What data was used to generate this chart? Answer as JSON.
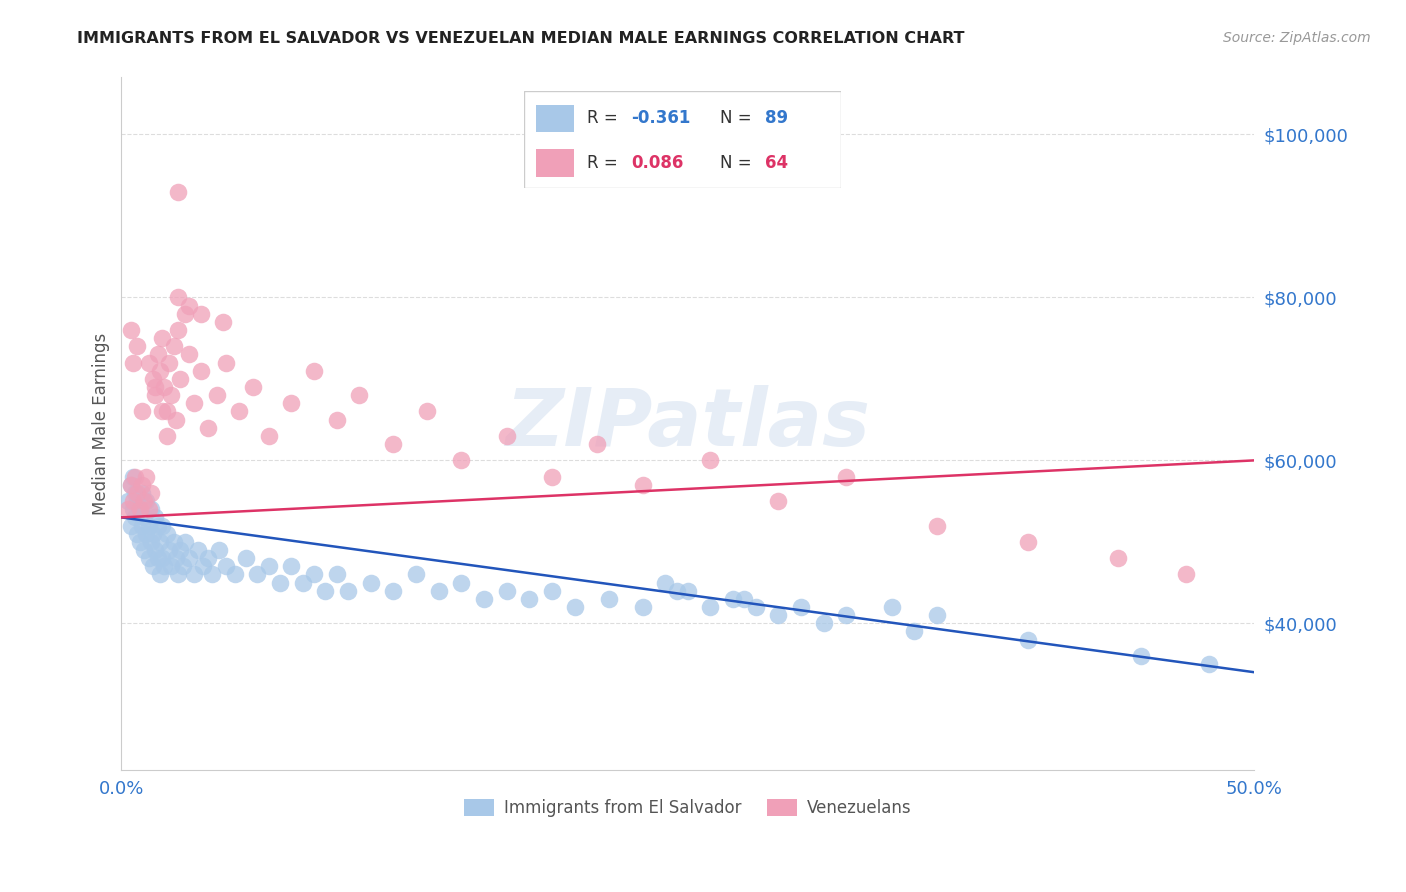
{
  "title": "IMMIGRANTS FROM EL SALVADOR VS VENEZUELAN MEDIAN MALE EARNINGS CORRELATION CHART",
  "source": "Source: ZipAtlas.com",
  "ylabel": "Median Male Earnings",
  "watermark": "ZIPatlas",
  "legend_blue_r": "R = -0.361",
  "legend_blue_n": "N = 89",
  "legend_pink_r": "R = 0.086",
  "legend_pink_n": "N = 64",
  "legend_blue_label": "Immigrants from El Salvador",
  "legend_pink_label": "Venezuelans",
  "xlim": [
    0.0,
    0.5
  ],
  "ylim": [
    22000,
    107000
  ],
  "yticks": [
    40000,
    60000,
    80000,
    100000
  ],
  "ytick_labels": [
    "$40,000",
    "$60,000",
    "$80,000",
    "$100,000"
  ],
  "xticks": [
    0.0,
    0.1,
    0.2,
    0.3,
    0.4,
    0.5
  ],
  "xtick_labels": [
    "0.0%",
    "",
    "",
    "",
    "",
    "50.0%"
  ],
  "blue_color": "#a8c8e8",
  "pink_color": "#f0a0b8",
  "line_blue_color": "#2255bb",
  "line_pink_color": "#dd3366",
  "tick_label_color": "#3377cc",
  "title_color": "#222222",
  "grid_color": "#dddddd",
  "blue_scatter_x": [
    0.003,
    0.004,
    0.004,
    0.005,
    0.005,
    0.006,
    0.006,
    0.007,
    0.007,
    0.008,
    0.008,
    0.009,
    0.009,
    0.01,
    0.01,
    0.011,
    0.011,
    0.012,
    0.012,
    0.013,
    0.013,
    0.014,
    0.014,
    0.015,
    0.015,
    0.016,
    0.016,
    0.017,
    0.017,
    0.018,
    0.018,
    0.019,
    0.02,
    0.021,
    0.022,
    0.023,
    0.024,
    0.025,
    0.026,
    0.027,
    0.028,
    0.03,
    0.032,
    0.034,
    0.036,
    0.038,
    0.04,
    0.043,
    0.046,
    0.05,
    0.055,
    0.06,
    0.065,
    0.07,
    0.075,
    0.08,
    0.085,
    0.09,
    0.095,
    0.1,
    0.11,
    0.12,
    0.13,
    0.14,
    0.15,
    0.16,
    0.17,
    0.18,
    0.19,
    0.2,
    0.215,
    0.23,
    0.245,
    0.26,
    0.275,
    0.3,
    0.32,
    0.34,
    0.36,
    0.27,
    0.28,
    0.29,
    0.25,
    0.24,
    0.31,
    0.35,
    0.4,
    0.45,
    0.48
  ],
  "blue_scatter_y": [
    55000,
    52000,
    57000,
    54000,
    58000,
    53000,
    56000,
    51000,
    55000,
    50000,
    54000,
    52000,
    56000,
    49000,
    53000,
    51000,
    55000,
    48000,
    52000,
    50000,
    54000,
    47000,
    51000,
    49000,
    53000,
    48000,
    52000,
    46000,
    50000,
    48000,
    52000,
    47000,
    51000,
    49000,
    47000,
    50000,
    48000,
    46000,
    49000,
    47000,
    50000,
    48000,
    46000,
    49000,
    47000,
    48000,
    46000,
    49000,
    47000,
    46000,
    48000,
    46000,
    47000,
    45000,
    47000,
    45000,
    46000,
    44000,
    46000,
    44000,
    45000,
    44000,
    46000,
    44000,
    45000,
    43000,
    44000,
    43000,
    44000,
    42000,
    43000,
    42000,
    44000,
    42000,
    43000,
    42000,
    41000,
    42000,
    41000,
    43000,
    42000,
    41000,
    44000,
    45000,
    40000,
    39000,
    38000,
    36000,
    35000
  ],
  "pink_scatter_x": [
    0.003,
    0.004,
    0.005,
    0.006,
    0.007,
    0.008,
    0.009,
    0.01,
    0.011,
    0.012,
    0.013,
    0.014,
    0.015,
    0.016,
    0.017,
    0.018,
    0.019,
    0.02,
    0.021,
    0.022,
    0.023,
    0.024,
    0.025,
    0.026,
    0.028,
    0.03,
    0.032,
    0.035,
    0.038,
    0.042,
    0.046,
    0.052,
    0.058,
    0.065,
    0.075,
    0.085,
    0.095,
    0.105,
    0.12,
    0.135,
    0.15,
    0.17,
    0.19,
    0.21,
    0.23,
    0.26,
    0.29,
    0.32,
    0.36,
    0.4,
    0.44,
    0.47,
    0.02,
    0.018,
    0.015,
    0.012,
    0.009,
    0.007,
    0.005,
    0.004,
    0.025,
    0.03,
    0.035,
    0.045
  ],
  "pink_scatter_y": [
    54000,
    57000,
    55000,
    58000,
    56000,
    54000,
    57000,
    55000,
    58000,
    54000,
    56000,
    70000,
    68000,
    73000,
    71000,
    75000,
    69000,
    66000,
    72000,
    68000,
    74000,
    65000,
    76000,
    70000,
    78000,
    73000,
    67000,
    71000,
    64000,
    68000,
    72000,
    66000,
    69000,
    63000,
    67000,
    71000,
    65000,
    68000,
    62000,
    66000,
    60000,
    63000,
    58000,
    62000,
    57000,
    60000,
    55000,
    58000,
    52000,
    50000,
    48000,
    46000,
    63000,
    66000,
    69000,
    72000,
    66000,
    74000,
    72000,
    76000,
    80000,
    79000,
    78000,
    77000
  ],
  "pink_outlier_x": [
    0.025
  ],
  "pink_outlier_y": [
    93000
  ],
  "blue_line_x": [
    0.0,
    0.5
  ],
  "blue_line_y": [
    53000,
    34000
  ],
  "pink_line_x": [
    0.0,
    0.5
  ],
  "pink_line_y": [
    53000,
    60000
  ]
}
